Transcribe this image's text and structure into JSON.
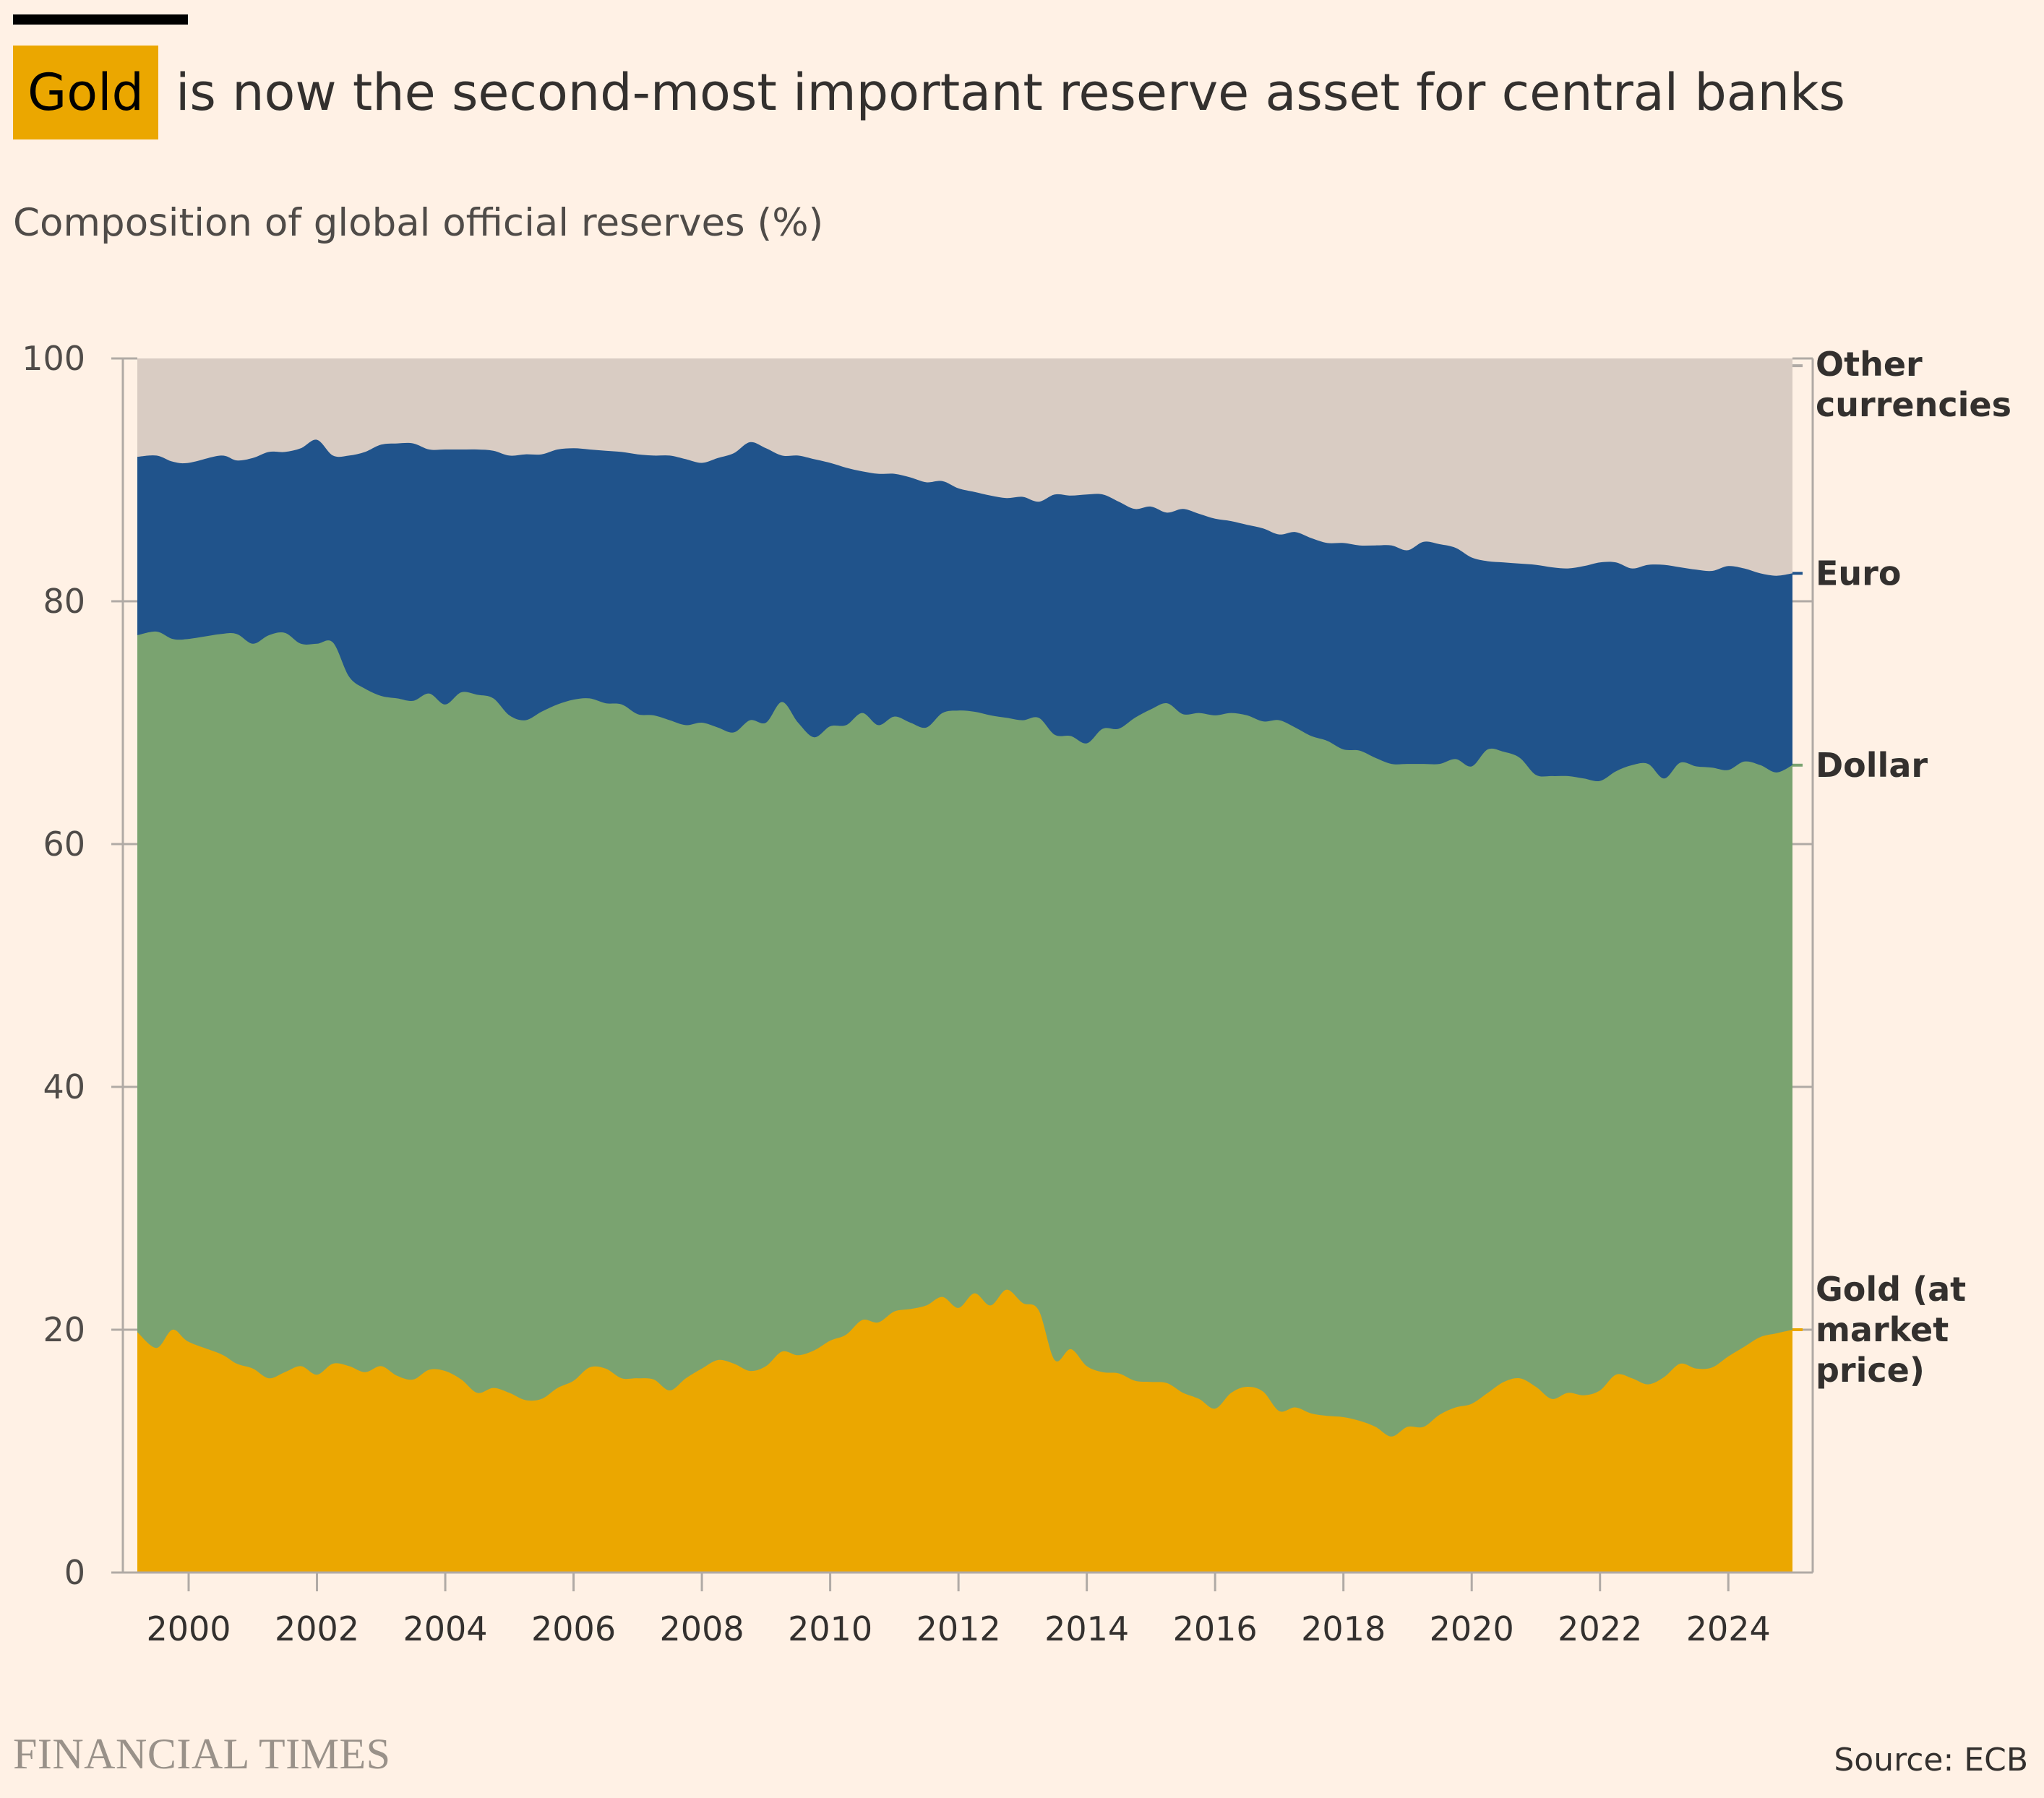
{
  "header": {
    "highlight": "Gold",
    "title_rest": "is now the second-most important reserve asset for central banks",
    "subtitle": "Composition of global official reserves (%)"
  },
  "footer": {
    "brand": "FINANCIAL TIMES",
    "source": "Source: ECB"
  },
  "colors": {
    "background": "#fff1e5",
    "gold": "#eba700",
    "dollar": "#7aa370",
    "euro": "#20538b",
    "other": "#d9ccc3",
    "text": "#33302e",
    "tick": "#b0aaa5"
  },
  "chart_data": {
    "type": "area",
    "stacked": true,
    "xlim": [
      1999.2,
      2025.0
    ],
    "ylim": [
      0,
      100
    ],
    "y_ticks": [
      0,
      20,
      40,
      60,
      80,
      100
    ],
    "x_ticks": [
      2000,
      2002,
      2004,
      2006,
      2008,
      2010,
      2012,
      2014,
      2016,
      2018,
      2020,
      2022,
      2024
    ],
    "x_tick_labels": [
      "2000",
      "2002",
      "2004",
      "2006",
      "2008",
      "2010",
      "2012",
      "2014",
      "2016",
      "2018",
      "2020",
      "2022",
      "2024"
    ],
    "legend_position": "right, labels at line ends",
    "x": [
      1999.2,
      1999.5,
      1999.75,
      2000.0,
      2000.5,
      2000.75,
      2001.0,
      2001.25,
      2001.5,
      2001.75,
      2002.0,
      2002.25,
      2002.5,
      2002.75,
      2003.0,
      2003.25,
      2003.5,
      2003.75,
      2004.0,
      2004.25,
      2004.5,
      2004.75,
      2005.0,
      2005.25,
      2005.5,
      2005.75,
      2006.0,
      2006.25,
      2006.5,
      2006.75,
      2007.0,
      2007.25,
      2007.5,
      2007.75,
      2008.0,
      2008.25,
      2008.5,
      2008.75,
      2009.0,
      2009.25,
      2009.5,
      2009.75,
      2010.0,
      2010.25,
      2010.5,
      2010.75,
      2011.0,
      2011.25,
      2011.5,
      2011.75,
      2012.0,
      2012.25,
      2012.5,
      2012.75,
      2013.0,
      2013.25,
      2013.5,
      2013.75,
      2014.0,
      2014.25,
      2014.5,
      2014.75,
      2015.0,
      2015.25,
      2015.5,
      2015.75,
      2016.0,
      2016.25,
      2016.5,
      2016.75,
      2017.0,
      2017.25,
      2017.5,
      2017.75,
      2018.0,
      2018.25,
      2018.5,
      2018.75,
      2019.0,
      2019.25,
      2019.5,
      2019.75,
      2020.0,
      2020.25,
      2020.5,
      2020.75,
      2021.0,
      2021.25,
      2021.5,
      2021.75,
      2022.0,
      2022.25,
      2022.5,
      2022.75,
      2023.0,
      2023.25,
      2023.5,
      2023.75,
      2024.0,
      2024.25,
      2024.5,
      2024.75,
      2025.0
    ],
    "series": [
      {
        "name": "Gold (at market price)",
        "color": "#eba700",
        "values": [
          19.8,
          18.5,
          20.0,
          19.0,
          18.0,
          17.2,
          16.8,
          16.0,
          16.5,
          17.0,
          16.3,
          17.2,
          17.0,
          16.5,
          17.0,
          16.2,
          15.9,
          16.7,
          16.6,
          15.9,
          14.8,
          15.2,
          14.8,
          14.2,
          14.3,
          15.2,
          15.8,
          16.9,
          16.8,
          16.0,
          16.0,
          15.9,
          15.0,
          16.0,
          16.8,
          17.5,
          17.2,
          16.6,
          17.0,
          18.2,
          17.9,
          18.3,
          19.1,
          19.6,
          20.8,
          20.6,
          21.5,
          21.7,
          22.0,
          22.7,
          21.8,
          23.0,
          22.0,
          23.3,
          22.2,
          21.6,
          17.5,
          18.4,
          17.0,
          16.5,
          16.4,
          15.8,
          15.7,
          15.6,
          14.8,
          14.3,
          13.5,
          14.8,
          15.3,
          14.9,
          13.3,
          13.6,
          13.1,
          12.9,
          12.8,
          12.5,
          12.0,
          11.2,
          12.0,
          12.0,
          13.0,
          13.6,
          13.9,
          14.8,
          15.7,
          16.0,
          15.3,
          14.3,
          14.8,
          14.6,
          15.0,
          16.3,
          16.0,
          15.5,
          16.1,
          17.2,
          16.8,
          16.9,
          17.8,
          18.6,
          19.4,
          19.7,
          20.0
        ]
      },
      {
        "name": "Dollar",
        "color": "#7aa370",
        "values": [
          77.2,
          77.5,
          76.9,
          76.9,
          77.3,
          77.3,
          76.5,
          77.2,
          77.4,
          76.5,
          76.5,
          76.6,
          73.8,
          72.8,
          72.2,
          72.0,
          71.8,
          72.4,
          71.5,
          72.5,
          72.3,
          72.0,
          70.6,
          70.2,
          70.9,
          71.5,
          71.9,
          72.0,
          71.6,
          71.5,
          70.7,
          70.6,
          70.2,
          69.8,
          70.0,
          69.6,
          69.2,
          70.2,
          70.0,
          71.7,
          70.0,
          68.8,
          69.7,
          69.8,
          70.8,
          69.8,
          70.5,
          70.0,
          69.6,
          70.8,
          71.0,
          70.9,
          70.6,
          70.4,
          70.2,
          70.4,
          69.0,
          68.9,
          68.3,
          69.5,
          69.5,
          70.4,
          71.1,
          71.6,
          70.7,
          70.8,
          70.6,
          70.8,
          70.6,
          70.1,
          70.2,
          69.6,
          68.9,
          68.5,
          67.8,
          67.7,
          67.1,
          66.6,
          66.6,
          66.6,
          66.6,
          67.0,
          66.4,
          67.8,
          67.6,
          67.1,
          65.7,
          65.6,
          65.6,
          65.4,
          65.2,
          66.0,
          66.5,
          66.6,
          65.4,
          66.7,
          66.4,
          66.3,
          66.1,
          66.8,
          66.5,
          65.9,
          66.5
        ]
      },
      {
        "name": "Euro",
        "color": "#20538b",
        "values": [
          91.9,
          92.0,
          91.5,
          91.4,
          92.0,
          91.6,
          91.8,
          92.3,
          92.3,
          92.6,
          93.3,
          92.0,
          92.0,
          92.3,
          92.9,
          93.0,
          93.0,
          92.5,
          92.5,
          92.5,
          92.5,
          92.4,
          92.0,
          92.1,
          92.1,
          92.5,
          92.6,
          92.5,
          92.4,
          92.3,
          92.1,
          92.0,
          92.0,
          91.7,
          91.4,
          91.8,
          92.2,
          93.1,
          92.6,
          92.0,
          92.0,
          91.7,
          91.4,
          91.0,
          90.7,
          90.5,
          90.5,
          90.2,
          89.8,
          89.9,
          89.3,
          89.0,
          88.7,
          88.5,
          88.6,
          88.2,
          88.8,
          88.7,
          88.8,
          88.8,
          88.2,
          87.6,
          87.8,
          87.3,
          87.6,
          87.2,
          86.8,
          86.6,
          86.3,
          86.0,
          85.5,
          85.7,
          85.2,
          84.8,
          84.8,
          84.6,
          84.6,
          84.6,
          84.2,
          84.9,
          84.7,
          84.4,
          83.6,
          83.3,
          83.2,
          83.1,
          83.0,
          82.8,
          82.7,
          82.9,
          83.2,
          83.2,
          82.7,
          83.0,
          83.0,
          82.8,
          82.6,
          82.5,
          82.9,
          82.7,
          82.3,
          82.1,
          82.3
        ]
      },
      {
        "name": "Other currencies",
        "color": "#d9ccc3",
        "values": [
          100,
          100,
          100,
          100,
          100,
          100,
          100,
          100,
          100,
          100,
          100,
          100,
          100,
          100,
          100,
          100,
          100,
          100,
          100,
          100,
          100,
          100,
          100,
          100,
          100,
          100,
          100,
          100,
          100,
          100,
          100,
          100,
          100,
          100,
          100,
          100,
          100,
          100,
          100,
          100,
          100,
          100,
          100,
          100,
          100,
          100,
          100,
          100,
          100,
          100,
          100,
          100,
          100,
          100,
          100,
          100,
          100,
          100,
          100,
          100,
          100,
          100,
          100,
          100,
          100,
          100,
          100,
          100,
          100,
          100,
          100,
          100,
          100,
          100,
          100,
          100,
          100,
          100,
          100,
          100,
          100,
          100,
          100,
          100,
          100,
          100,
          100,
          100,
          100,
          100,
          100,
          100,
          100,
          100,
          100,
          100,
          100,
          100,
          100,
          100,
          100,
          100,
          100
        ]
      }
    ],
    "value_note": "series values are cumulative stacked upper boundaries in %",
    "end_labels": [
      {
        "series": "Other currencies",
        "lines": [
          "Other",
          "currencies"
        ]
      },
      {
        "series": "Euro",
        "lines": [
          "Euro"
        ]
      },
      {
        "series": "Dollar",
        "lines": [
          "Dollar"
        ]
      },
      {
        "series": "Gold (at market price)",
        "lines": [
          "Gold (at",
          "market",
          "price)"
        ]
      }
    ]
  }
}
